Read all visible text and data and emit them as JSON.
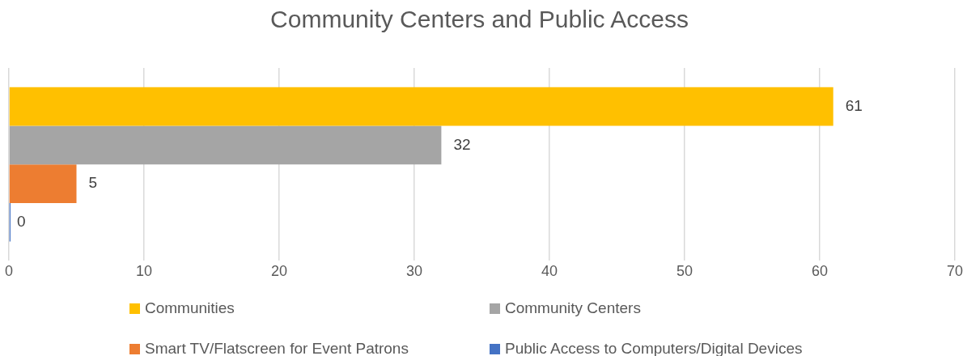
{
  "chart_data": {
    "type": "bar",
    "orientation": "horizontal",
    "title": "Community Centers and Public Access",
    "categories": [
      null
    ],
    "series": [
      {
        "name": "Communities",
        "color": "#ffc000",
        "values": [
          61
        ]
      },
      {
        "name": "Community Centers",
        "color": "#a5a5a5",
        "values": [
          32
        ]
      },
      {
        "name": "Smart TV/Flatscreen for Event Patrons",
        "color": "#ed7d31",
        "values": [
          5
        ]
      },
      {
        "name": "Public Access to Computers/Digital Devices",
        "color": "#4472c4",
        "values": [
          0
        ]
      }
    ],
    "xlim": [
      0,
      70
    ],
    "xticks": [
      0,
      10,
      20,
      30,
      40,
      50,
      60,
      70
    ],
    "grid": "x",
    "legend": "bottom",
    "data_labels": true
  }
}
